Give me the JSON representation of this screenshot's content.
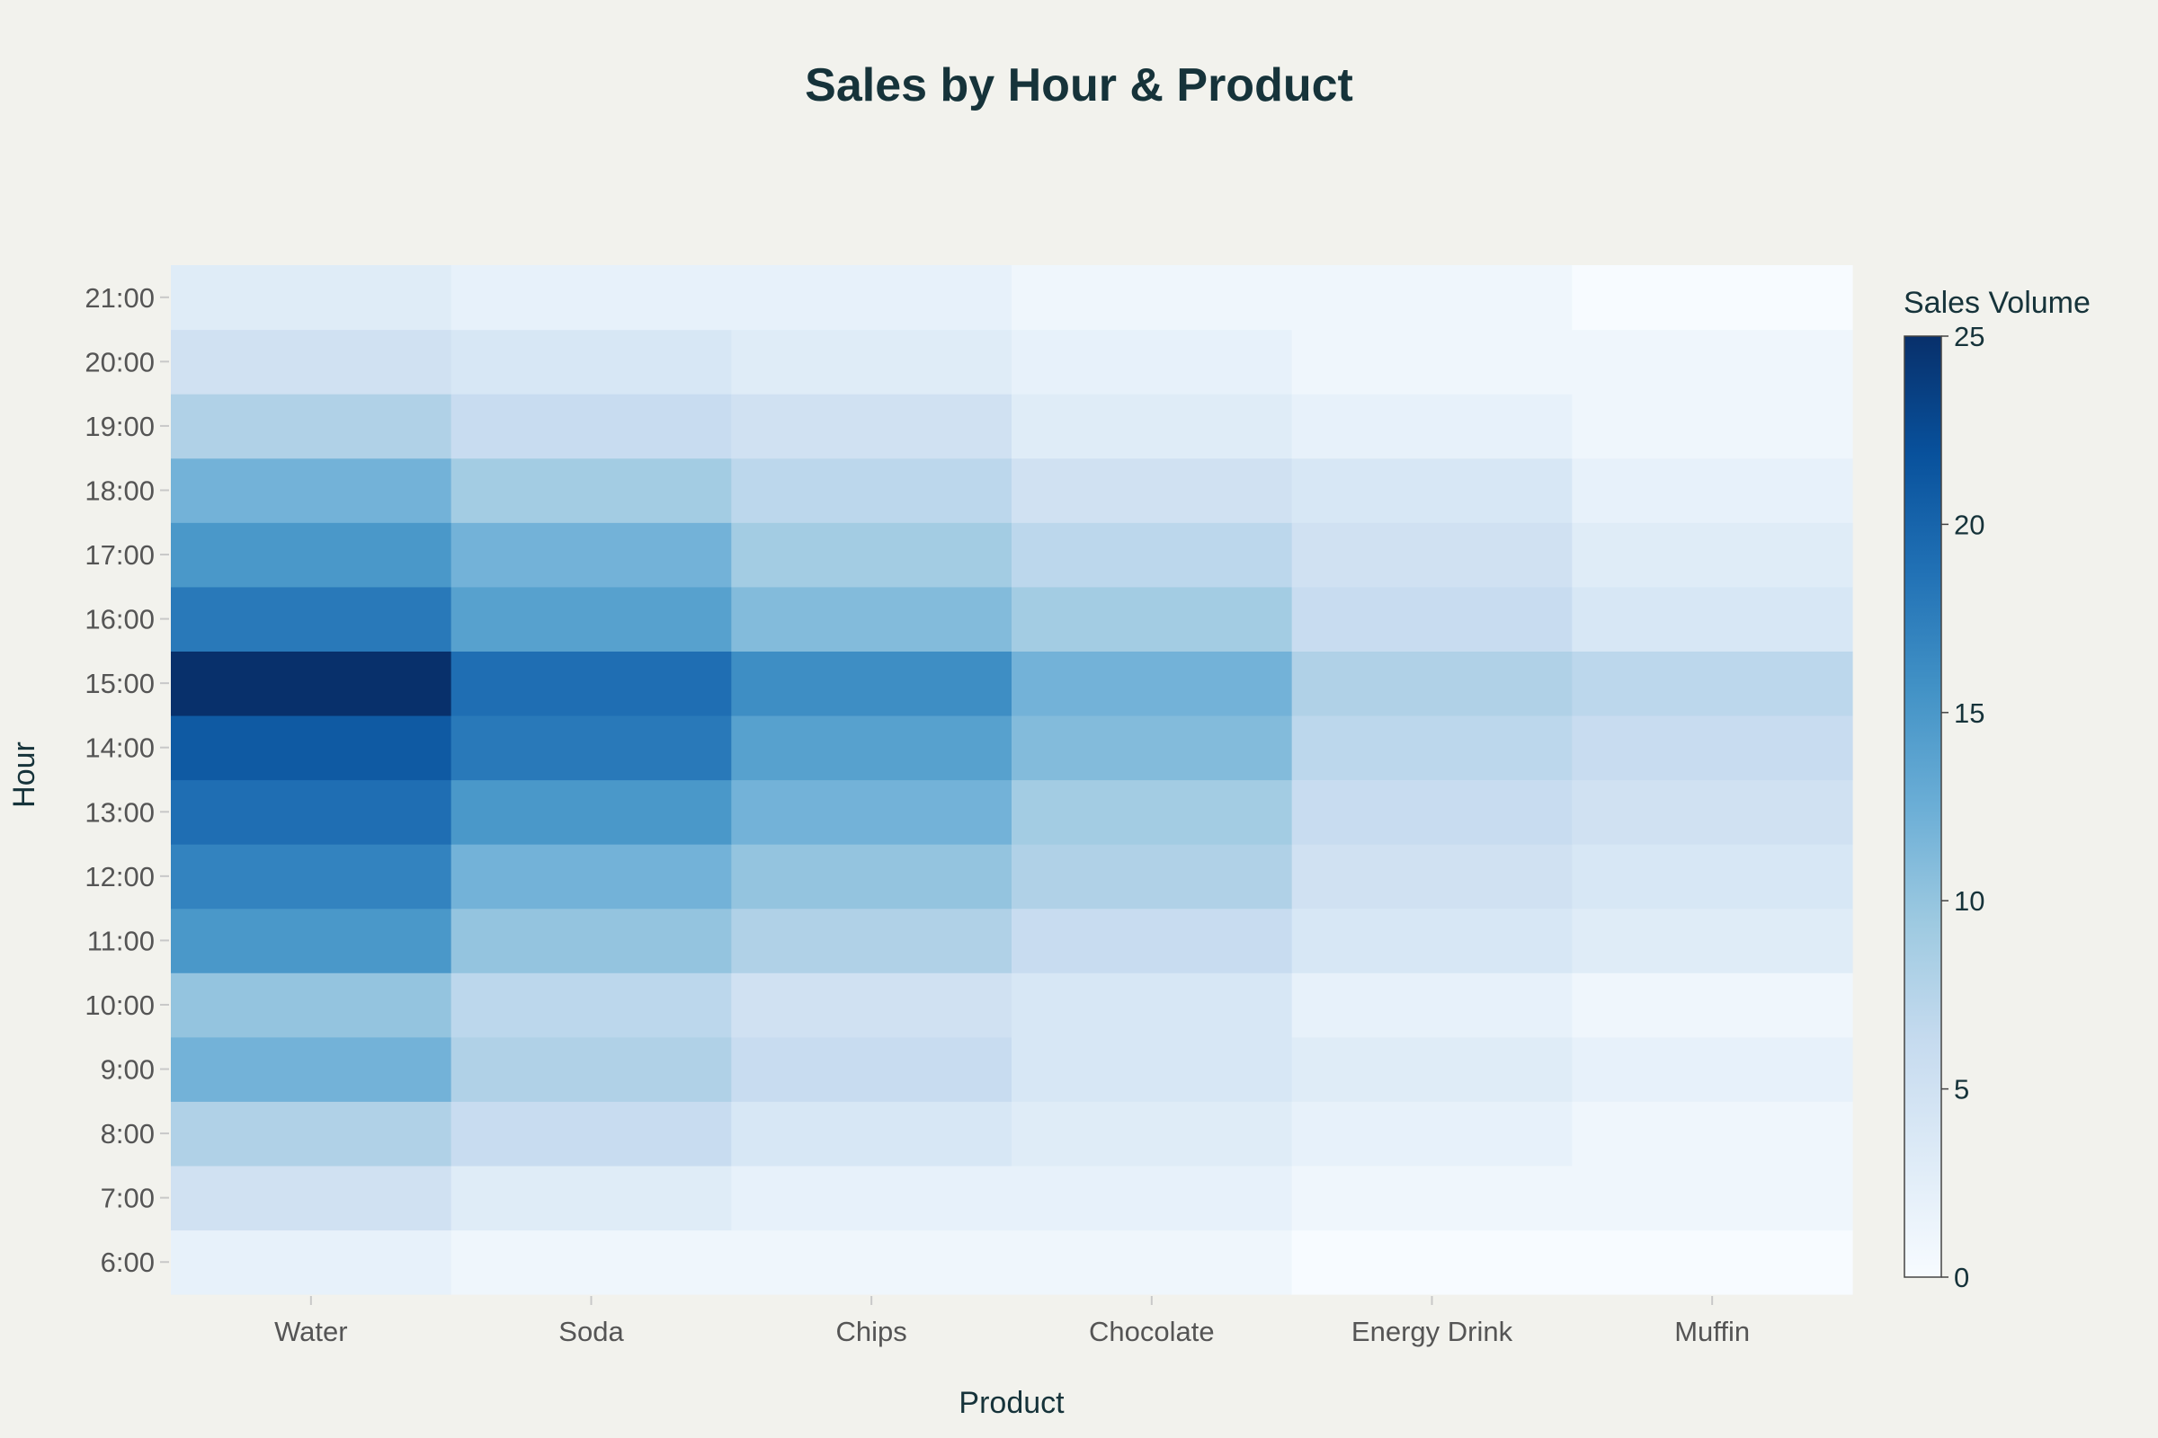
{
  "chart_data": {
    "type": "heatmap",
    "title": "Sales by Hour & Product",
    "xlabel": "Product",
    "ylabel": "Hour",
    "x": [
      "Water",
      "Soda",
      "Chips",
      "Chocolate",
      "Energy Drink",
      "Muffin"
    ],
    "y": [
      "6:00",
      "7:00",
      "8:00",
      "9:00",
      "10:00",
      "11:00",
      "12:00",
      "13:00",
      "14:00",
      "15:00",
      "16:00",
      "17:00",
      "18:00",
      "19:00",
      "20:00",
      "21:00"
    ],
    "z": [
      [
        2,
        1,
        1,
        1,
        0,
        0
      ],
      [
        5,
        3,
        2,
        2,
        1,
        1
      ],
      [
        8,
        6,
        4,
        3,
        2,
        1
      ],
      [
        12,
        8,
        6,
        4,
        3,
        2
      ],
      [
        10,
        7,
        5,
        4,
        2,
        1
      ],
      [
        15,
        10,
        8,
        6,
        4,
        3
      ],
      [
        17,
        12,
        10,
        8,
        5,
        4
      ],
      [
        19,
        15,
        12,
        9,
        6,
        5
      ],
      [
        21,
        18,
        14,
        11,
        7,
        6
      ],
      [
        25,
        19,
        16,
        12,
        8,
        7
      ],
      [
        18,
        14,
        11,
        9,
        6,
        4
      ],
      [
        15,
        12,
        9,
        7,
        5,
        3
      ],
      [
        12,
        9,
        7,
        5,
        4,
        2
      ],
      [
        8,
        6,
        5,
        3,
        2,
        1
      ],
      [
        5,
        4,
        3,
        2,
        1,
        1
      ],
      [
        3,
        2,
        2,
        1,
        1,
        0
      ]
    ],
    "zlim": [
      0,
      25
    ],
    "colorscale": "Blues",
    "colorbar": {
      "title": "Sales Volume",
      "ticks": [
        0,
        5,
        10,
        15,
        20,
        25
      ]
    }
  }
}
